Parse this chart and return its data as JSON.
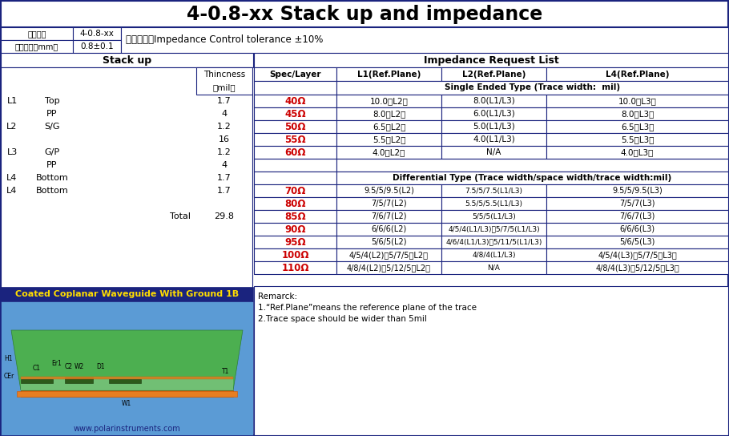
{
  "title": "4-0.8-xx Stack up and impedance",
  "title_fontsize": 18,
  "header_info": [
    [
      "叠构编号",
      "4-0.8-xx"
    ],
    [
      "完成板厚（mm）",
      "0.8±0.1"
    ]
  ],
  "notice": "注意事项：Impedance Control tolerance ±10%",
  "stack_up_title": "Stack up",
  "impedance_title": "Impedance Request List",
  "layers": [
    {
      "label": "L1",
      "name": "Top",
      "thickness": 1.7,
      "color": "#111111"
    },
    {
      "label": "",
      "name": "PP",
      "thickness": 4,
      "color": null
    },
    {
      "label": "L2",
      "name": "S/G",
      "thickness": 1.2,
      "color": "#111111"
    },
    {
      "label": "",
      "name": "",
      "thickness": 16,
      "color": "#cc6600"
    },
    {
      "label": "L3",
      "name": "G/P",
      "thickness": 1.2,
      "color": "#111111"
    },
    {
      "label": "",
      "name": "PP",
      "thickness": 4,
      "color": null
    },
    {
      "label": "L4",
      "name": "Bottom",
      "thickness": 1.7,
      "color": "#111111"
    }
  ],
  "total": "29.8",
  "col_headers": [
    "Spec/Layer",
    "L1(Ref.Plane)",
    "L2(Ref.Plane)",
    "L4(Ref.Plane)"
  ],
  "single_ended_header": "Single Ended Type (Trace width:  mil)",
  "single_ended_rows": [
    [
      "40Ω",
      "10.0（L2）",
      "8.0(L1/L3)",
      "10.0（L3）"
    ],
    [
      "45Ω",
      "8.0（L2）",
      "6.0(L1/L3)",
      "8.0（L3）"
    ],
    [
      "50Ω",
      "6.5（L2）",
      "5.0(L1/L3)",
      "6.5（L3）"
    ],
    [
      "55Ω",
      "5.5（L2）",
      "4.0(L1/L3)",
      "5.5（L3）"
    ],
    [
      "60Ω",
      "4.0（L2）",
      "N/A",
      "4.0（L3）"
    ]
  ],
  "diff_header": "Differential Type (Trace width/space width/trace width:mil)",
  "diff_rows": [
    [
      "70Ω",
      "9.5/5/9.5(L2)",
      "7.5/5/7.5(L1/L3)",
      "9.5/5/9.5(L3)"
    ],
    [
      "80Ω",
      "7/5/7(L2)",
      "5.5/5/5.5(L1/L3)",
      "7/5/7(L3)"
    ],
    [
      "85Ω",
      "7/6/7(L2)",
      "5/5/5(L1/L3)",
      "7/6/7(L3)"
    ],
    [
      "90Ω",
      "6/6/6(L2)",
      "4/5/4(L1/L3)、5/7/5(L1/L3)",
      "6/6/6(L3)"
    ],
    [
      "95Ω",
      "5/6/5(L2)",
      "4/6/4(L1/L3)、5/11/5(L1/L3)",
      "5/6/5(L3)"
    ],
    [
      "100Ω",
      "4/5/4(L2)、5/7/5（L2）",
      "4/8/4(L1/L3)",
      "4/5/4(L3)、5/7/5（L3）"
    ],
    [
      "110Ω",
      "4/8/4(L2)、5/12/5（L2）",
      "N/A",
      "4/8/4(L3)、5/12/5（L3）"
    ]
  ],
  "remark_lines": [
    "Remarck:",
    "1.“Ref.Plane”means the reference plane of the trace",
    "2.Trace space should be wider than 5mil"
  ],
  "waveguide_title": "Coated Coplanar Waveguide With Ground 1B",
  "website": "www.polarinstruments.com",
  "border_color": "#1a237e",
  "header_bg": "#1a237e",
  "table_header_bg": "#c8d8e8",
  "red_color": "#cc0000",
  "orange_layer_color": "#cc6600",
  "wave_bg": "#5b9bd5",
  "wave_title_bg": "#1a237e"
}
